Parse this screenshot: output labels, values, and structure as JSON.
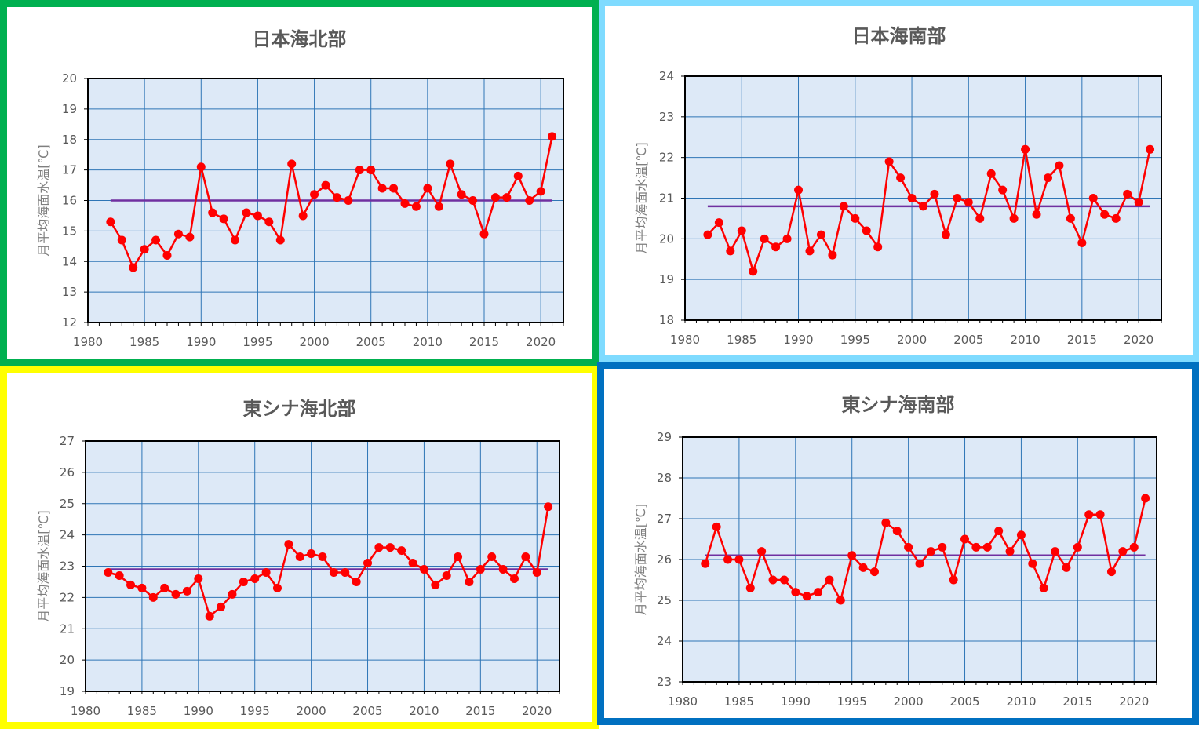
{
  "x": [
    1982,
    1983,
    1984,
    1985,
    1986,
    1987,
    1988,
    1989,
    1990,
    1991,
    1992,
    1993,
    1994,
    1995,
    1996,
    1997,
    1998,
    1999,
    2000,
    2001,
    2002,
    2003,
    2004,
    2005,
    2006,
    2007,
    2008,
    2009,
    2010,
    2011,
    2012,
    2013,
    2014,
    2015,
    2016,
    2017,
    2018,
    2019,
    2020,
    2021
  ],
  "x_ticks": [
    1980,
    1985,
    1990,
    1995,
    2000,
    2005,
    2010,
    2015,
    2020
  ],
  "colors": {
    "series": "#ff0000",
    "mean": "#7030a0",
    "plot_bg": "#dde9f7",
    "grid": "#2e75b6"
  },
  "chart_data": [
    {
      "type": "line",
      "title": "日本海北部",
      "ylabel": "月平均海面水温[℃]",
      "xlim": [
        1980,
        2022
      ],
      "ylim": [
        12,
        20
      ],
      "y_ticks": [
        12,
        13,
        14,
        15,
        16,
        17,
        18,
        19,
        20
      ],
      "border_color": "#00b050",
      "mean": 16.0,
      "values": [
        15.3,
        14.7,
        13.8,
        14.4,
        14.7,
        14.2,
        14.9,
        14.8,
        17.1,
        15.6,
        15.4,
        14.7,
        15.6,
        15.5,
        15.3,
        14.7,
        17.2,
        15.5,
        16.2,
        16.5,
        16.1,
        16.0,
        17.0,
        17.0,
        16.4,
        16.4,
        15.9,
        15.8,
        16.4,
        15.8,
        17.2,
        16.2,
        16.0,
        14.9,
        16.1,
        16.1,
        16.8,
        16.0,
        16.3,
        18.1
      ]
    },
    {
      "type": "line",
      "title": "日本海南部",
      "ylabel": "月平均海面水温[℃]",
      "xlim": [
        1980,
        2022
      ],
      "ylim": [
        18,
        24
      ],
      "y_ticks": [
        18,
        19,
        20,
        21,
        22,
        23,
        24
      ],
      "border_color": "#7fdbff",
      "mean": 20.8,
      "values": [
        20.1,
        20.4,
        19.7,
        20.2,
        19.2,
        20.0,
        19.8,
        20.0,
        21.2,
        19.7,
        20.1,
        19.6,
        20.8,
        20.5,
        20.2,
        19.8,
        21.9,
        21.5,
        21.0,
        20.8,
        21.1,
        20.1,
        21.0,
        20.9,
        20.5,
        21.6,
        21.2,
        20.5,
        22.2,
        20.6,
        21.5,
        21.8,
        20.5,
        19.9,
        21.0,
        20.6,
        20.5,
        21.1,
        20.9,
        22.2
      ]
    },
    {
      "type": "line",
      "title": "東シナ海北部",
      "ylabel": "月平均海面水温[℃]",
      "xlim": [
        1980,
        2022
      ],
      "ylim": [
        19,
        27
      ],
      "y_ticks": [
        19,
        20,
        21,
        22,
        23,
        24,
        25,
        26,
        27
      ],
      "border_color": "#ffff00",
      "mean": 22.9,
      "values": [
        22.8,
        22.7,
        22.4,
        22.3,
        22.0,
        22.3,
        22.1,
        22.2,
        22.6,
        21.4,
        21.7,
        22.1,
        22.5,
        22.6,
        22.8,
        22.3,
        23.7,
        23.3,
        23.4,
        23.3,
        22.8,
        22.8,
        22.5,
        23.1,
        23.6,
        23.6,
        23.5,
        23.1,
        22.9,
        22.4,
        22.7,
        23.3,
        22.5,
        22.9,
        23.3,
        22.9,
        22.6,
        23.3,
        22.8,
        24.9
      ]
    },
    {
      "type": "line",
      "title": "東シナ海南部",
      "ylabel": "月平均海面水温[℃]",
      "xlim": [
        1980,
        2022
      ],
      "ylim": [
        23,
        29
      ],
      "y_ticks": [
        23,
        24,
        25,
        26,
        27,
        28,
        29
      ],
      "border_color": "#0070c0",
      "mean": 26.1,
      "values": [
        25.9,
        26.8,
        26.0,
        26.0,
        25.3,
        26.2,
        25.5,
        25.5,
        25.2,
        25.1,
        25.2,
        25.5,
        25.0,
        26.1,
        25.8,
        25.7,
        26.9,
        26.7,
        26.3,
        25.9,
        26.2,
        26.3,
        25.5,
        26.5,
        26.3,
        26.3,
        26.7,
        26.2,
        26.6,
        25.9,
        25.3,
        26.2,
        25.8,
        26.3,
        27.1,
        27.1,
        25.7,
        26.2,
        26.3,
        27.5
      ]
    }
  ]
}
